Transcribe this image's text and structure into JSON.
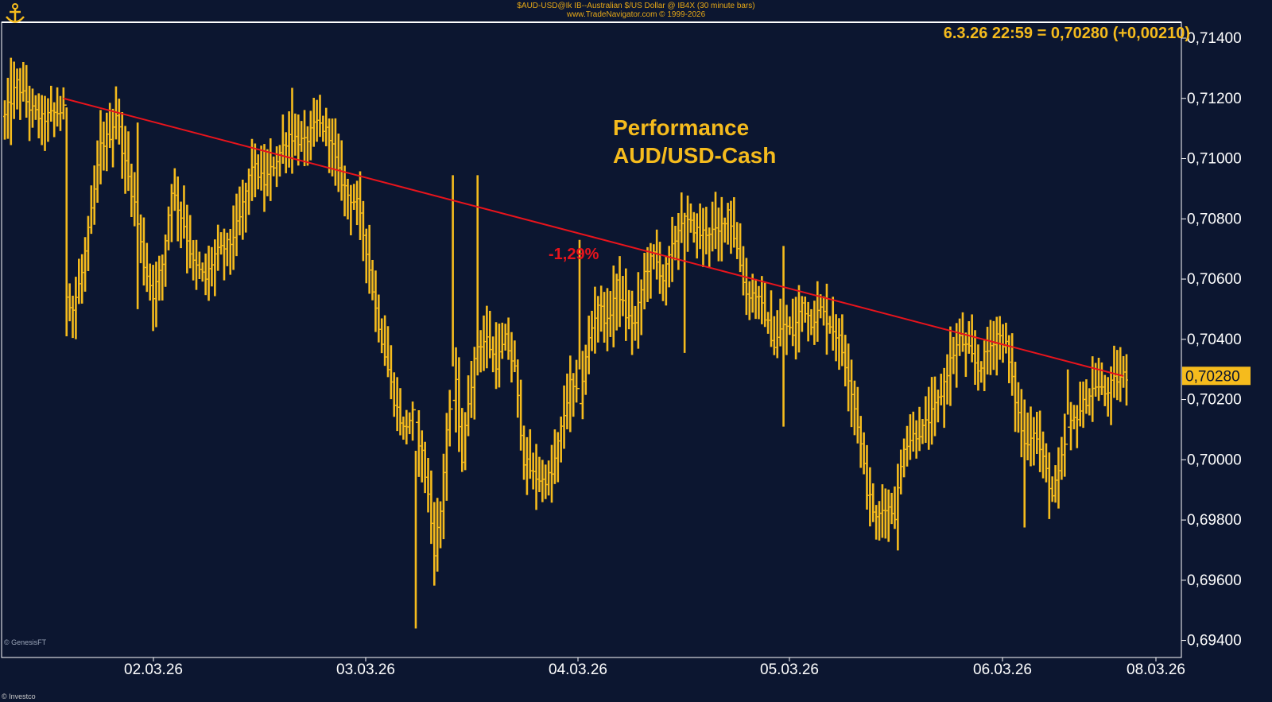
{
  "header": {
    "line1": "$AUD-USD@Ik  IB--Australian $/US Dollar @ IB4X  (30 minute bars)",
    "line2": "www.TradeNavigator.com © 1999-2026"
  },
  "watermark": "© GenesisFT",
  "footer": "© Investco",
  "colors": {
    "background": "#0c1630",
    "bars": "#f5bb1d",
    "trendline": "#e8141c",
    "axis_text": "#ffffff",
    "title_text": "#f5bb1d",
    "last_price_bg": "#f5bb1d"
  },
  "chart_data": {
    "type": "ohlc",
    "title": "Performance\nAUD/USD-Cash",
    "readout": "6.3.26 22:59 = 0,70280 (+0,00210)",
    "last_price_label": "0,70280",
    "annotation": "-1,29%",
    "ylim": [
      0.693,
      0.715
    ],
    "yticks": [
      "0,71400",
      "0,71200",
      "0,71000",
      "0,70800",
      "0,70600",
      "0,70400",
      "0,70200",
      "0,70000",
      "0,69800",
      "0,69600",
      "0,69400"
    ],
    "ytick_values": [
      0.714,
      0.712,
      0.71,
      0.708,
      0.706,
      0.704,
      0.702,
      0.7,
      0.698,
      0.696,
      0.694
    ],
    "xticks": [
      "02.03.26",
      "03.03.26",
      "04.03.26",
      "05.03.26",
      "06.03.26",
      "08.03.26"
    ],
    "trendline": {
      "start_bar": 19,
      "start_value": 0.712,
      "end_bar": 362,
      "end_value": 0.70278
    },
    "annotation_value": 0.7072,
    "anchors": [
      [
        0,
        0.7114
      ],
      [
        4,
        0.7125
      ],
      [
        8,
        0.7117
      ],
      [
        12,
        0.7113
      ],
      [
        16,
        0.7115
      ],
      [
        19,
        0.7116
      ],
      [
        20,
        0.7055
      ],
      [
        22,
        0.705
      ],
      [
        25,
        0.7062
      ],
      [
        28,
        0.7082
      ],
      [
        31,
        0.7104
      ],
      [
        34,
        0.7108
      ],
      [
        36,
        0.7115
      ],
      [
        39,
        0.7098
      ],
      [
        42,
        0.7085
      ],
      [
        45,
        0.7065
      ],
      [
        48,
        0.7055
      ],
      [
        51,
        0.7065
      ],
      [
        54,
        0.709
      ],
      [
        58,
        0.7078
      ],
      [
        61,
        0.7065
      ],
      [
        65,
        0.706
      ],
      [
        68,
        0.7068
      ],
      [
        73,
        0.7072
      ],
      [
        76,
        0.708
      ],
      [
        80,
        0.7098
      ],
      [
        84,
        0.7092
      ],
      [
        88,
        0.71
      ],
      [
        92,
        0.7108
      ],
      [
        97,
        0.7105
      ],
      [
        101,
        0.7112
      ],
      [
        105,
        0.7108
      ],
      [
        108,
        0.7095
      ],
      [
        111,
        0.7088
      ],
      [
        114,
        0.7085
      ],
      [
        117,
        0.707
      ],
      [
        120,
        0.705
      ],
      [
        123,
        0.7035
      ],
      [
        126,
        0.702
      ],
      [
        129,
        0.701
      ],
      [
        132,
        0.7015
      ],
      [
        135,
        0.7002
      ],
      [
        137,
        0.6988
      ],
      [
        139,
        0.697
      ],
      [
        141,
        0.6983
      ],
      [
        143,
        0.701
      ],
      [
        146,
        0.7025
      ],
      [
        148,
        0.7
      ],
      [
        150,
        0.702
      ],
      [
        153,
        0.7038
      ],
      [
        156,
        0.704
      ],
      [
        159,
        0.7032
      ],
      [
        162,
        0.704
      ],
      [
        165,
        0.703
      ],
      [
        168,
        0.7
      ],
      [
        171,
        0.6995
      ],
      [
        174,
        0.6993
      ],
      [
        177,
        0.6995
      ],
      [
        180,
        0.701
      ],
      [
        183,
        0.7025
      ],
      [
        186,
        0.702
      ],
      [
        189,
        0.704
      ],
      [
        192,
        0.7052
      ],
      [
        195,
        0.7045
      ],
      [
        198,
        0.7058
      ],
      [
        201,
        0.7048
      ],
      [
        204,
        0.7045
      ],
      [
        207,
        0.7062
      ],
      [
        210,
        0.7068
      ],
      [
        213,
        0.706
      ],
      [
        216,
        0.707
      ],
      [
        219,
        0.708
      ],
      [
        222,
        0.7078
      ],
      [
        225,
        0.7075
      ],
      [
        228,
        0.7076
      ],
      [
        231,
        0.7075
      ],
      [
        234,
        0.7083
      ],
      [
        237,
        0.707
      ],
      [
        240,
        0.7055
      ],
      [
        243,
        0.7055
      ],
      [
        246,
        0.7048
      ],
      [
        249,
        0.7038
      ],
      [
        252,
        0.7045
      ],
      [
        255,
        0.7042
      ],
      [
        258,
        0.7052
      ],
      [
        261,
        0.7046
      ],
      [
        264,
        0.705
      ],
      [
        267,
        0.7045
      ],
      [
        270,
        0.704
      ],
      [
        273,
        0.7028
      ],
      [
        276,
        0.7012
      ],
      [
        279,
        0.699
      ],
      [
        282,
        0.698
      ],
      [
        285,
        0.6985
      ],
      [
        288,
        0.6982
      ],
      [
        291,
        0.7005
      ],
      [
        294,
        0.7008
      ],
      [
        297,
        0.701
      ],
      [
        300,
        0.7015
      ],
      [
        303,
        0.7022
      ],
      [
        306,
        0.7033
      ],
      [
        309,
        0.704
      ],
      [
        312,
        0.7036
      ],
      [
        315,
        0.703
      ],
      [
        318,
        0.7036
      ],
      [
        321,
        0.7042
      ],
      [
        324,
        0.7038
      ],
      [
        327,
        0.702
      ],
      [
        330,
        0.7005
      ],
      [
        333,
        0.701
      ],
      [
        336,
        0.7
      ],
      [
        339,
        0.6988
      ],
      [
        341,
        0.6995
      ],
      [
        344,
        0.701
      ],
      [
        347,
        0.7015
      ],
      [
        350,
        0.702
      ],
      [
        353,
        0.7025
      ],
      [
        356,
        0.7022
      ],
      [
        359,
        0.7026
      ],
      [
        362,
        0.7028
      ]
    ],
    "spikes": [
      {
        "bar": 2,
        "high": 0.71335,
        "low": 0.71045
      },
      {
        "bar": 20,
        "high": 0.7117,
        "low": 0.7041
      },
      {
        "bar": 43,
        "high": 0.7112,
        "low": 0.705
      },
      {
        "bar": 93,
        "high": 0.71235,
        "low": 0.7095
      },
      {
        "bar": 133,
        "high": 0.7003,
        "low": 0.6944
      },
      {
        "bar": 145,
        "high": 0.70945,
        "low": 0.7031
      },
      {
        "bar": 153,
        "high": 0.70945,
        "low": 0.7028
      },
      {
        "bar": 186,
        "high": 0.7073,
        "low": 0.703
      },
      {
        "bar": 220,
        "high": 0.7082,
        "low": 0.70355
      },
      {
        "bar": 230,
        "high": 0.7089,
        "low": 0.707
      },
      {
        "bar": 252,
        "high": 0.7071,
        "low": 0.7011
      },
      {
        "bar": 282,
        "high": 0.6985,
        "low": 0.69735
      },
      {
        "bar": 330,
        "high": 0.702,
        "low": 0.69775
      },
      {
        "bar": 344,
        "high": 0.703,
        "low": 0.7015
      }
    ]
  }
}
